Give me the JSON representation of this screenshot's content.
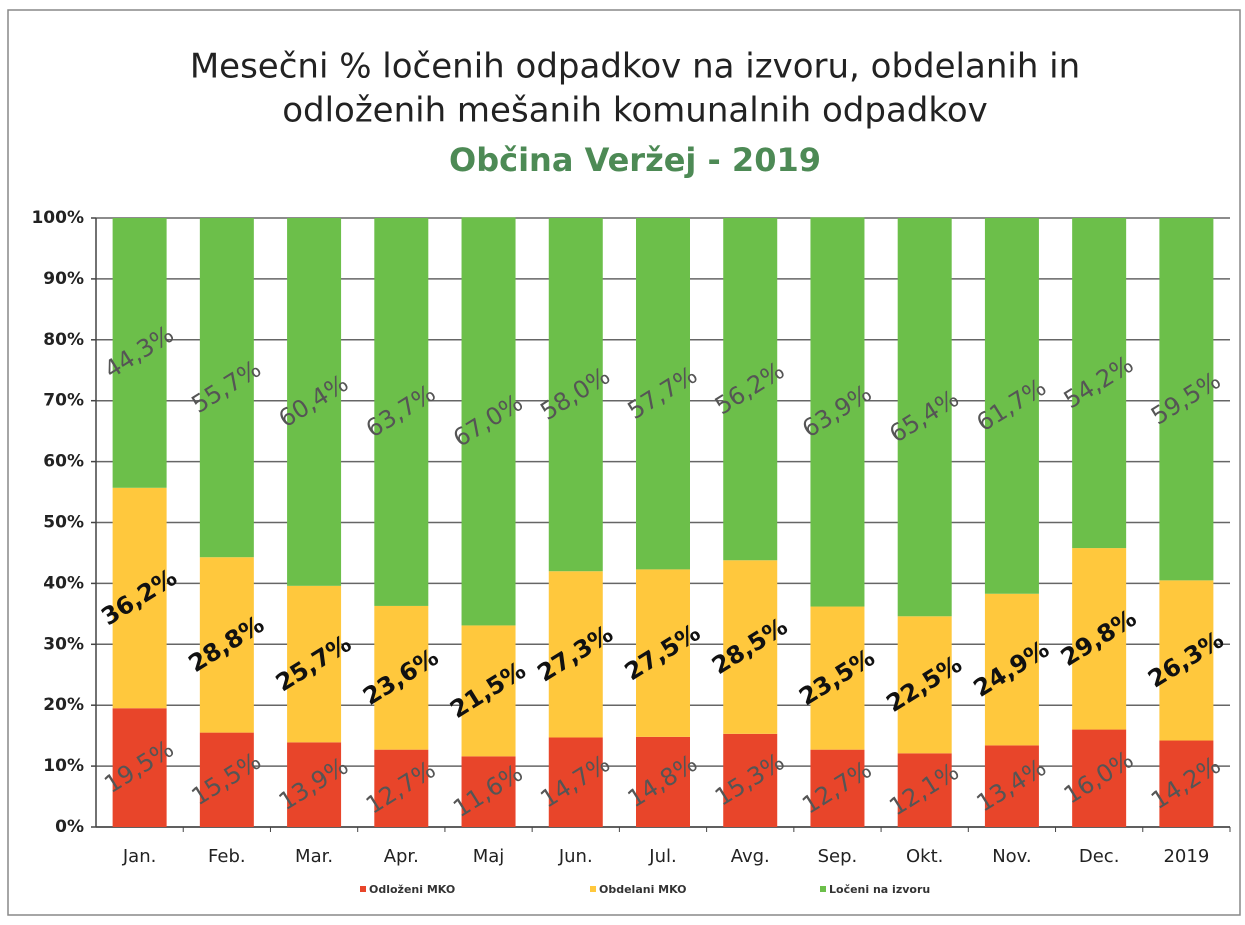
{
  "chart_data": {
    "type": "stacked_bar",
    "title": [
      "Mesečni % ločenih odpadkov na izvoru, obdelanih in",
      "odloženih mešanih komunalnih odpadkov"
    ],
    "subtitle": "Občina Veržej - 2019",
    "categories": [
      "Jan.",
      "Feb.",
      "Mar.",
      "Apr.",
      "Maj",
      "Jun.",
      "Jul.",
      "Avg.",
      "Sep.",
      "Okt.",
      "Nov.",
      "Dec.",
      "2019"
    ],
    "series": [
      {
        "name": "Odloženi MKO",
        "color": "#e8452a",
        "values": [
          19.5,
          15.5,
          13.9,
          12.7,
          11.6,
          14.7,
          14.8,
          15.3,
          12.7,
          12.1,
          13.4,
          16.0,
          14.2
        ],
        "value_labels": [
          "19,5%",
          "15,5%",
          "13,9%",
          "12,7%",
          "11,6%",
          "14,7%",
          "14,8%",
          "15,3%",
          "12,7%",
          "12,1%",
          "13,4%",
          "16,0%",
          "14,2%"
        ]
      },
      {
        "name": "Obdelani MKO",
        "color": "#ffc83d",
        "values": [
          36.2,
          28.8,
          25.7,
          23.6,
          21.5,
          27.3,
          27.5,
          28.5,
          23.5,
          22.5,
          24.9,
          29.8,
          26.3
        ],
        "value_labels": [
          "36,2%",
          "28,8%",
          "25,7%",
          "23,6%",
          "21,5%",
          "27,3%",
          "27,5%",
          "28,5%",
          "23,5%",
          "22,5%",
          "24,9%",
          "29,8%",
          "26,3%"
        ]
      },
      {
        "name": "Ločeni na izvoru",
        "color": "#6cbf4a",
        "values": [
          44.3,
          55.7,
          60.4,
          63.7,
          67.0,
          58.0,
          57.7,
          56.2,
          63.9,
          65.4,
          61.7,
          54.2,
          59.5
        ],
        "value_labels": [
          "44,3%",
          "55,7%",
          "60,4%",
          "63,7%",
          "67,0%",
          "58,0%",
          "57,7%",
          "56,2%",
          "63,9%",
          "65,4%",
          "61,7%",
          "54,2%",
          "59,5%"
        ]
      }
    ],
    "ylim": [
      0,
      100
    ],
    "yticks": [
      {
        "value": 0,
        "label": "0%"
      },
      {
        "value": 10,
        "label": "10%"
      },
      {
        "value": 20,
        "label": "20%"
      },
      {
        "value": 30,
        "label": "30%"
      },
      {
        "value": 40,
        "label": "40%"
      },
      {
        "value": 50,
        "label": "50%"
      },
      {
        "value": 60,
        "label": "60%"
      },
      {
        "value": 70,
        "label": "70%"
      },
      {
        "value": 80,
        "label": "80%"
      },
      {
        "value": 90,
        "label": "90%"
      },
      {
        "value": 100,
        "label": "100%"
      }
    ],
    "grid": true,
    "legend": "bottom"
  }
}
